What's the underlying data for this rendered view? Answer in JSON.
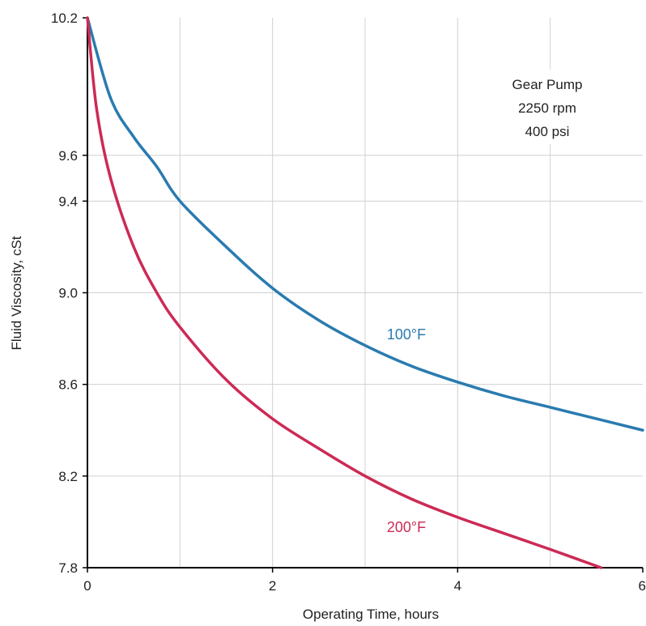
{
  "chart_data": {
    "type": "line",
    "xlabel": "Operating Time, hours",
    "ylabel": "Fluid Viscosity, cSt",
    "xlim": [
      0,
      6
    ],
    "ylim": [
      7.8,
      10.2
    ],
    "x_ticks": [
      "0",
      "2",
      "4",
      "6"
    ],
    "y_ticks": [
      "7.8",
      "8.2",
      "8.6",
      "9.0",
      "9.4",
      "9.6",
      "10.2"
    ],
    "y_tick_values": [
      7.8,
      8.2,
      8.6,
      9.0,
      9.4,
      9.6,
      10.2
    ],
    "grid": true,
    "annotation": [
      "Gear Pump",
      "2250 rpm",
      "400 psi"
    ],
    "series": [
      {
        "name": "100°F",
        "color": "#2a7bb0",
        "x": [
          0,
          0.25,
          0.5,
          0.75,
          1,
          1.5,
          2,
          2.5,
          3,
          3.5,
          4,
          4.5,
          5,
          5.5,
          6
        ],
        "y": [
          10.2,
          9.85,
          9.68,
          9.55,
          9.4,
          9.2,
          9.02,
          8.88,
          8.77,
          8.68,
          8.61,
          8.55,
          8.5,
          8.45,
          8.4
        ]
      },
      {
        "name": "200°F",
        "color": "#cc2a55",
        "x": [
          0,
          0.1,
          0.25,
          0.5,
          0.75,
          1,
          1.5,
          2,
          2.5,
          3,
          3.5,
          4,
          4.5,
          5,
          5.55
        ],
        "y": [
          10.2,
          9.8,
          9.5,
          9.2,
          9.0,
          8.85,
          8.62,
          8.45,
          8.32,
          8.2,
          8.1,
          8.02,
          7.95,
          7.88,
          7.8
        ]
      }
    ]
  }
}
